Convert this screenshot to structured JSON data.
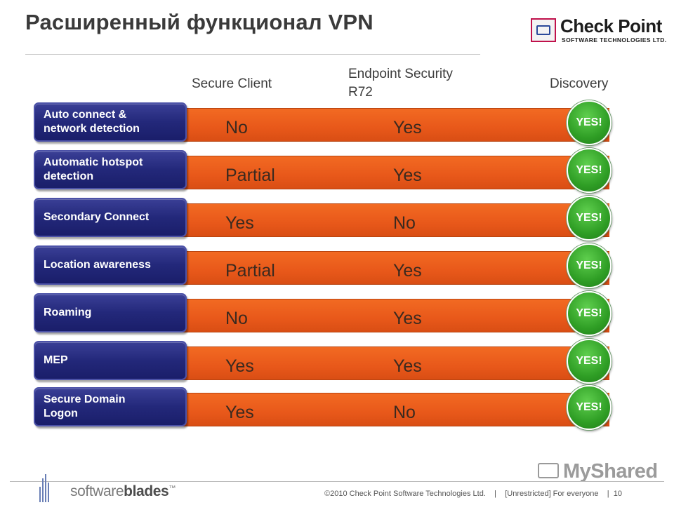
{
  "title": "Расширенный функционал VPN",
  "logo": {
    "name": "Check Point",
    "subtitle": "SOFTWARE TECHNOLOGIES LTD.",
    "emblem_icon": "check-point-emblem-icon"
  },
  "columns": {
    "secure_client": "Secure Client",
    "endpoint_line1": "Endpoint Security",
    "endpoint_line2": "R72",
    "discovery": "Discovery"
  },
  "colors": {
    "bar": "#e8581a",
    "label": "#23287a",
    "yes_badge": "#2f9e25"
  },
  "rows": [
    {
      "label_line1": "Auto connect &",
      "label_line2": "network detection",
      "secure_client": "No",
      "endpoint": "Yes",
      "discovery": "YES!"
    },
    {
      "label_line1": "Automatic hotspot",
      "label_line2": "detection",
      "secure_client": "Partial",
      "endpoint": "Yes",
      "discovery": "YES!"
    },
    {
      "label_line1": "Secondary Connect",
      "label_line2": "",
      "secure_client": "Yes",
      "endpoint": "No",
      "discovery": "YES!"
    },
    {
      "label_line1": "Location awareness",
      "label_line2": "",
      "secure_client": "Partial",
      "endpoint": "Yes",
      "discovery": "YES!"
    },
    {
      "label_line1": "Roaming",
      "label_line2": "",
      "secure_client": "No",
      "endpoint": "Yes",
      "discovery": "YES!"
    },
    {
      "label_line1": "MEP",
      "label_line2": "",
      "secure_client": "Yes",
      "endpoint": "Yes",
      "discovery": "YES!"
    },
    {
      "label_line1": "Secure Domain",
      "label_line2": "Logon",
      "secure_client": "Yes",
      "endpoint": "No",
      "discovery": "YES!"
    }
  ],
  "footer": {
    "brand_light": "software",
    "brand_bold": "blades",
    "brand_tm": "™",
    "copyright": "©2010 Check Point Software Technologies Ltd.",
    "sep1": "|",
    "classification": "[Unrestricted] For everyone",
    "sep2": "|",
    "page_number": "10",
    "blades_icon": "software-blades-icon"
  },
  "watermark": {
    "text": "MyShared",
    "icon": "presentation-icon"
  }
}
